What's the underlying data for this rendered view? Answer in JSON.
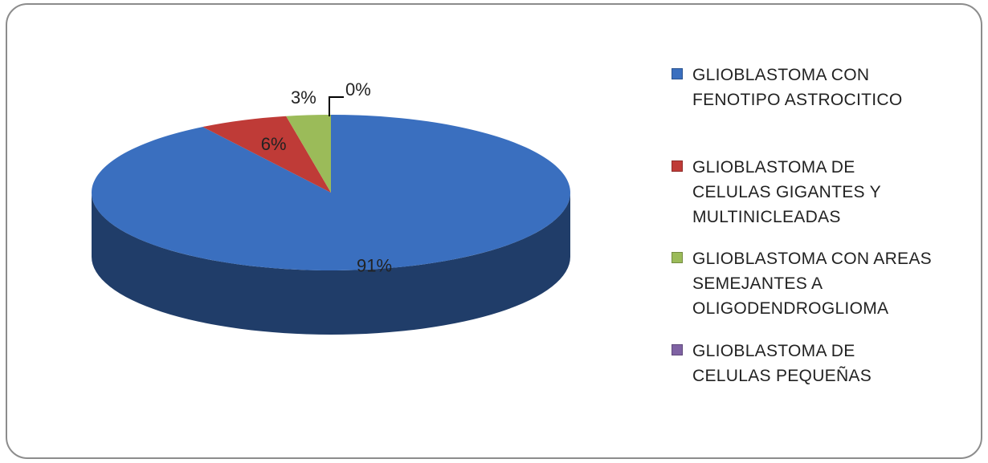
{
  "chart_data": {
    "type": "pie",
    "categories": [
      "GLIOBLASTOMA CON FENOTIPO ASTROCITICO",
      "GLIOBLASTOMA DE CELULAS GIGANTES Y MULTINICLEADAS",
      "GLIOBLASTOMA CON AREAS SEMEJANTES A OLIGODENDROGLIOMA",
      "GLIOBLASTOMA DE CELULAS PEQUEÑAS"
    ],
    "values": [
      91,
      6,
      3,
      0
    ],
    "value_labels": [
      "91%",
      "6%",
      "3%",
      "0%"
    ],
    "colors": [
      "#3a6fbf",
      "#bf3b37",
      "#9bbb59",
      "#7f62a3"
    ],
    "legend": "right"
  }
}
